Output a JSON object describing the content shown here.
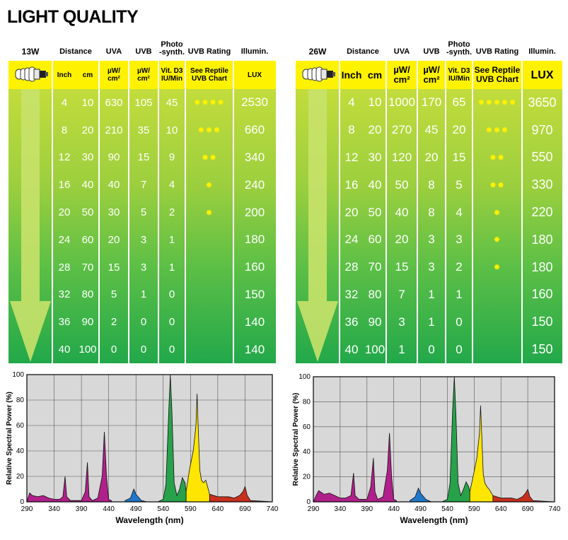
{
  "title": "LIGHT QUALITY",
  "tables": [
    {
      "wattage": "13W",
      "headers": {
        "distance": "Distance",
        "uva": "UVA",
        "uvb": "UVB",
        "photo": "Photo\n-synth.",
        "rating": "UVB Rating",
        "illum": "Illumin."
      },
      "units": {
        "inch": "Inch",
        "cm": "cm",
        "uva": "µW/\ncm²",
        "uvb": "µW/\ncm²",
        "photo": "Vit. D3\nIU/Min",
        "rating": "See Reptile\nUVB Chart",
        "illum": "LUX"
      },
      "rows": [
        {
          "inch": "4",
          "cm": "10",
          "uva": "630",
          "uvb": "105",
          "photo": "45",
          "stars": "✸✸✸✸",
          "lux": "2530"
        },
        {
          "inch": "8",
          "cm": "20",
          "uva": "210",
          "uvb": "35",
          "photo": "10",
          "stars": "✸✸✸",
          "lux": "660"
        },
        {
          "inch": "12",
          "cm": "30",
          "uva": "90",
          "uvb": "15",
          "photo": "9",
          "stars": "✸✸",
          "lux": "340"
        },
        {
          "inch": "16",
          "cm": "40",
          "uva": "40",
          "uvb": "7",
          "photo": "4",
          "stars": "✸",
          "lux": "240"
        },
        {
          "inch": "20",
          "cm": "50",
          "uva": "30",
          "uvb": "5",
          "photo": "2",
          "stars": "✸",
          "lux": "200"
        },
        {
          "inch": "24",
          "cm": "60",
          "uva": "20",
          "uvb": "3",
          "photo": "1",
          "stars": "",
          "lux": "180"
        },
        {
          "inch": "28",
          "cm": "70",
          "uva": "15",
          "uvb": "3",
          "photo": "1",
          "stars": "",
          "lux": "160"
        },
        {
          "inch": "32",
          "cm": "80",
          "uva": "5",
          "uvb": "1",
          "photo": "0",
          "stars": "",
          "lux": "150"
        },
        {
          "inch": "36",
          "cm": "90",
          "uva": "2",
          "uvb": "0",
          "photo": "0",
          "stars": "",
          "lux": "140"
        },
        {
          "inch": "40",
          "cm": "100",
          "uva": "0",
          "uvb": "0",
          "photo": "0",
          "stars": "",
          "lux": "140"
        }
      ]
    },
    {
      "wattage": "26W",
      "headers": {
        "distance": "Distance",
        "uva": "UVA",
        "uvb": "UVB",
        "photo": "Photo\n-synth.",
        "rating": "UVB Rating",
        "illum": "Illumin."
      },
      "units": {
        "inch": "Inch",
        "cm": "cm",
        "uva": "µW/\ncm²",
        "uvb": "µW/\ncm²",
        "photo": "Vit. D3\nIU/Min",
        "rating": "See Reptile\nUVB Chart",
        "illum": "LUX"
      },
      "rows": [
        {
          "inch": "4",
          "cm": "10",
          "uva": "1000",
          "uvb": "170",
          "photo": "65",
          "stars": "✸✸✸✸✸",
          "lux": "3650"
        },
        {
          "inch": "8",
          "cm": "20",
          "uva": "270",
          "uvb": "45",
          "photo": "20",
          "stars": "✸✸✸",
          "lux": "970"
        },
        {
          "inch": "12",
          "cm": "30",
          "uva": "120",
          "uvb": "20",
          "photo": "15",
          "stars": "✸✸",
          "lux": "550"
        },
        {
          "inch": "16",
          "cm": "40",
          "uva": "50",
          "uvb": "8",
          "photo": "5",
          "stars": "✸✸",
          "lux": "330"
        },
        {
          "inch": "20",
          "cm": "50",
          "uva": "40",
          "uvb": "8",
          "photo": "4",
          "stars": "✸",
          "lux": "220"
        },
        {
          "inch": "24",
          "cm": "60",
          "uva": "20",
          "uvb": "3",
          "photo": "3",
          "stars": "✸",
          "lux": "180"
        },
        {
          "inch": "28",
          "cm": "70",
          "uva": "15",
          "uvb": "3",
          "photo": "2",
          "stars": "✸",
          "lux": "180"
        },
        {
          "inch": "32",
          "cm": "80",
          "uva": "7",
          "uvb": "1",
          "photo": "1",
          "stars": "",
          "lux": "160"
        },
        {
          "inch": "36",
          "cm": "90",
          "uva": "3",
          "uvb": "1",
          "photo": "0",
          "stars": "",
          "lux": "150"
        },
        {
          "inch": "40",
          "cm": "100",
          "uva": "1",
          "uvb": "0",
          "photo": "0",
          "stars": "",
          "lux": "150"
        }
      ]
    }
  ],
  "chart_data": [
    {
      "type": "area",
      "title": "",
      "xlabel": "Wavelength (nm)",
      "ylabel": "Relative Spectral Power (%)",
      "xlim": [
        290,
        740
      ],
      "ylim": [
        0,
        100
      ],
      "x_ticks": [
        290,
        340,
        390,
        440,
        490,
        540,
        590,
        640,
        690,
        740
      ],
      "y_ticks": [
        0,
        20,
        40,
        60,
        80,
        100
      ],
      "grid": true,
      "series": [
        {
          "color": "#b0208a",
          "points": [
            [
              290,
              0
            ],
            [
              295,
              7
            ],
            [
              300,
              5
            ],
            [
              310,
              4
            ],
            [
              320,
              5
            ],
            [
              330,
              3
            ],
            [
              340,
              2
            ],
            [
              350,
              2
            ],
            [
              356,
              4
            ],
            [
              360,
              20
            ],
            [
              363,
              4
            ],
            [
              370,
              1
            ],
            [
              390,
              1
            ],
            [
              397,
              8
            ],
            [
              401,
              31
            ],
            [
              404,
              4
            ],
            [
              410,
              1
            ],
            [
              420,
              3
            ],
            [
              428,
              20
            ],
            [
              432,
              55
            ],
            [
              436,
              20
            ],
            [
              440,
              2
            ],
            [
              445,
              1
            ]
          ]
        },
        {
          "color": "#2077c8",
          "points": [
            [
              470,
              1
            ],
            [
              480,
              3
            ],
            [
              486,
              10
            ],
            [
              490,
              6
            ],
            [
              500,
              1
            ],
            [
              510,
              0
            ]
          ]
        },
        {
          "color": "#27a24b",
          "points": [
            [
              530,
              0
            ],
            [
              540,
              2
            ],
            [
              545,
              14
            ],
            [
              550,
              70
            ],
            [
              553,
              100
            ],
            [
              556,
              70
            ],
            [
              560,
              15
            ],
            [
              565,
              5
            ],
            [
              570,
              10
            ],
            [
              575,
              19
            ],
            [
              580,
              15
            ],
            [
              582,
              8
            ]
          ]
        },
        {
          "color": "#ffe600",
          "points": [
            [
              582,
              8
            ],
            [
              588,
              25
            ],
            [
              595,
              40
            ],
            [
              600,
              60
            ],
            [
              602,
              85
            ],
            [
              604,
              60
            ],
            [
              607,
              25
            ],
            [
              610,
              17
            ],
            [
              614,
              15
            ],
            [
              618,
              17
            ],
            [
              625,
              6
            ]
          ]
        },
        {
          "color": "#c8301e",
          "points": [
            [
              625,
              6
            ],
            [
              640,
              4
            ],
            [
              660,
              4
            ],
            [
              670,
              3
            ],
            [
              680,
              5
            ],
            [
              686,
              8
            ],
            [
              690,
              12
            ],
            [
              694,
              5
            ],
            [
              700,
              1
            ],
            [
              740,
              0
            ]
          ]
        }
      ]
    },
    {
      "type": "area",
      "title": "",
      "xlabel": "Wavelength (nm)",
      "ylabel": "Relative Spectral Power (%)",
      "xlim": [
        290,
        740
      ],
      "ylim": [
        0,
        100
      ],
      "x_ticks": [
        290,
        340,
        390,
        440,
        490,
        540,
        590,
        640,
        690,
        740
      ],
      "y_ticks": [
        0,
        20,
        40,
        60,
        80,
        100
      ],
      "grid": true,
      "series": [
        {
          "color": "#b0208a",
          "points": [
            [
              290,
              0
            ],
            [
              295,
              5
            ],
            [
              300,
              9
            ],
            [
              310,
              6
            ],
            [
              320,
              7
            ],
            [
              330,
              5
            ],
            [
              340,
              3
            ],
            [
              350,
              3
            ],
            [
              360,
              5
            ],
            [
              365,
              23
            ],
            [
              368,
              5
            ],
            [
              375,
              2
            ],
            [
              390,
              2
            ],
            [
              397,
              12
            ],
            [
              402,
              35
            ],
            [
              405,
              8
            ],
            [
              410,
              2
            ],
            [
              420,
              4
            ],
            [
              428,
              25
            ],
            [
              432,
              55
            ],
            [
              436,
              20
            ],
            [
              440,
              2
            ],
            [
              445,
              1
            ]
          ]
        },
        {
          "color": "#2077c8",
          "points": [
            [
              470,
              1
            ],
            [
              480,
              4
            ],
            [
              486,
              11
            ],
            [
              490,
              7
            ],
            [
              500,
              2
            ],
            [
              510,
              0
            ]
          ]
        },
        {
          "color": "#27a24b",
          "points": [
            [
              530,
              0
            ],
            [
              540,
              2
            ],
            [
              545,
              15
            ],
            [
              550,
              75
            ],
            [
              553,
              100
            ],
            [
              556,
              70
            ],
            [
              560,
              15
            ],
            [
              565,
              5
            ],
            [
              570,
              10
            ],
            [
              575,
              16
            ],
            [
              580,
              12
            ],
            [
              582,
              8
            ]
          ]
        },
        {
          "color": "#ffe600",
          "points": [
            [
              582,
              8
            ],
            [
              588,
              20
            ],
            [
              595,
              35
            ],
            [
              600,
              55
            ],
            [
              602,
              77
            ],
            [
              604,
              55
            ],
            [
              607,
              22
            ],
            [
              610,
              15
            ],
            [
              614,
              12
            ],
            [
              618,
              10
            ],
            [
              625,
              5
            ]
          ]
        },
        {
          "color": "#c8301e",
          "points": [
            [
              625,
              5
            ],
            [
              640,
              3
            ],
            [
              660,
              3
            ],
            [
              670,
              2
            ],
            [
              680,
              4
            ],
            [
              686,
              7
            ],
            [
              690,
              10
            ],
            [
              694,
              4
            ],
            [
              700,
              1
            ],
            [
              740,
              0
            ]
          ]
        }
      ]
    }
  ]
}
